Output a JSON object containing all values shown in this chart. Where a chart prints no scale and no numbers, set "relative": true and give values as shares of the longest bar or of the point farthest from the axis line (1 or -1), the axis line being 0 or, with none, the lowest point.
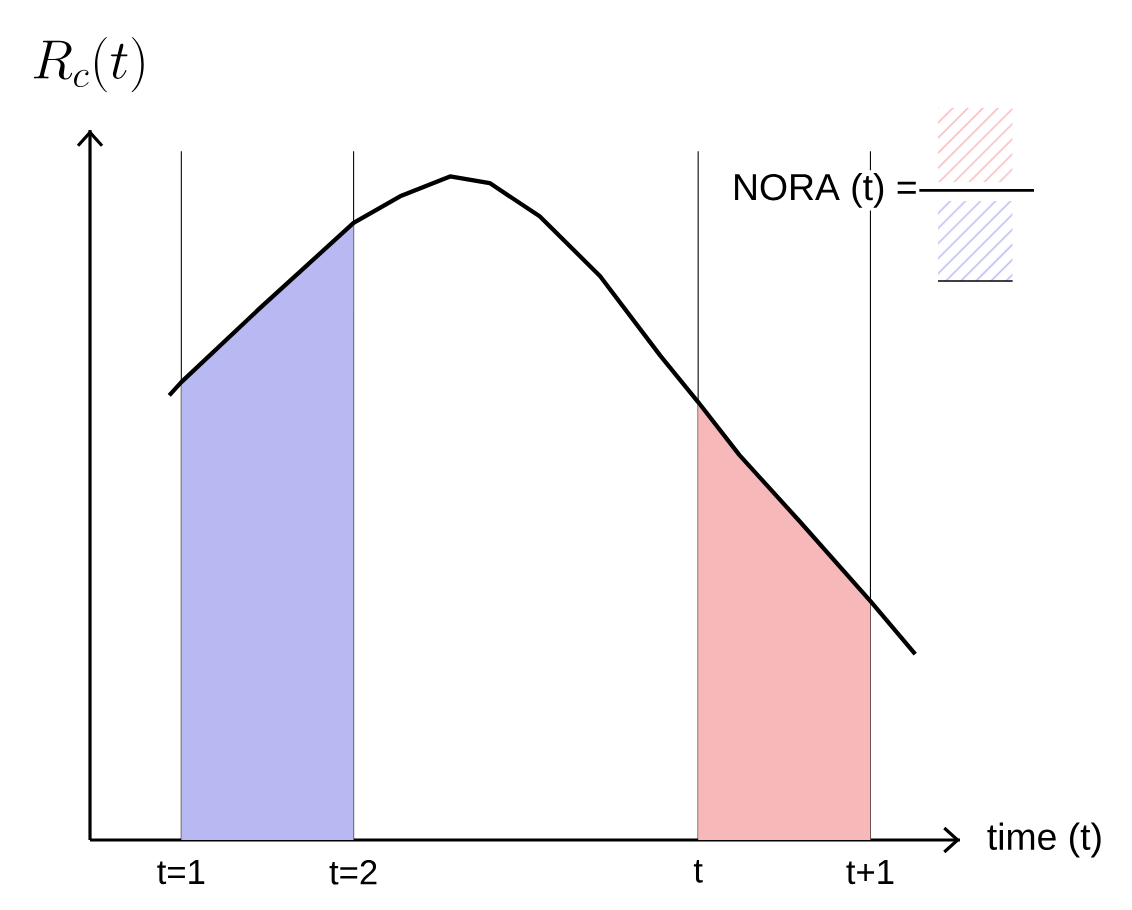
{
  "chart_data": {
    "type": "line",
    "relative": true,
    "ylabel": "R_c(t)",
    "xlabel": "time (t)",
    "xlim": [
      0.47,
      5.52
    ],
    "xticks": [
      {
        "value": 1,
        "label": "t=1"
      },
      {
        "value": 2,
        "label": "t=2"
      },
      {
        "value": 4,
        "label": "t"
      },
      {
        "value": 5,
        "label": "t+1"
      }
    ],
    "series": [
      {
        "type": "area",
        "color": "#b8b8f2",
        "x": [
          1,
          1.45,
          2
        ],
        "values": [
          0.69,
          0.8,
          0.93
        ]
      },
      {
        "type": "area",
        "color": "#f6b8b8",
        "x": [
          4,
          4.24,
          4.59,
          5
        ],
        "values": [
          0.66,
          0.58,
          0.48,
          0.36
        ]
      },
      {
        "color": "#000000",
        "x": [
          0.93,
          1,
          1.45,
          2,
          2.27,
          2.56,
          2.79,
          3.08,
          3.43,
          3.78,
          4,
          4.24,
          4.59,
          5,
          5.26
        ],
        "values": [
          0.67,
          0.69,
          0.8,
          0.93,
          0.97,
          1,
          0.99,
          0.94,
          0.85,
          0.73,
          0.66,
          0.58,
          0.48,
          0.36,
          0.28
        ]
      }
    ],
    "ref_lines": [
      {
        "axis": "x",
        "value": 1,
        "color": "#000000"
      },
      {
        "axis": "x",
        "value": 2,
        "color": "#000000"
      },
      {
        "axis": "x",
        "value": 4,
        "color": "#000000"
      },
      {
        "axis": "x",
        "value": 5,
        "color": "#000000"
      }
    ],
    "annotations": [
      "NORA (t) ="
    ]
  }
}
